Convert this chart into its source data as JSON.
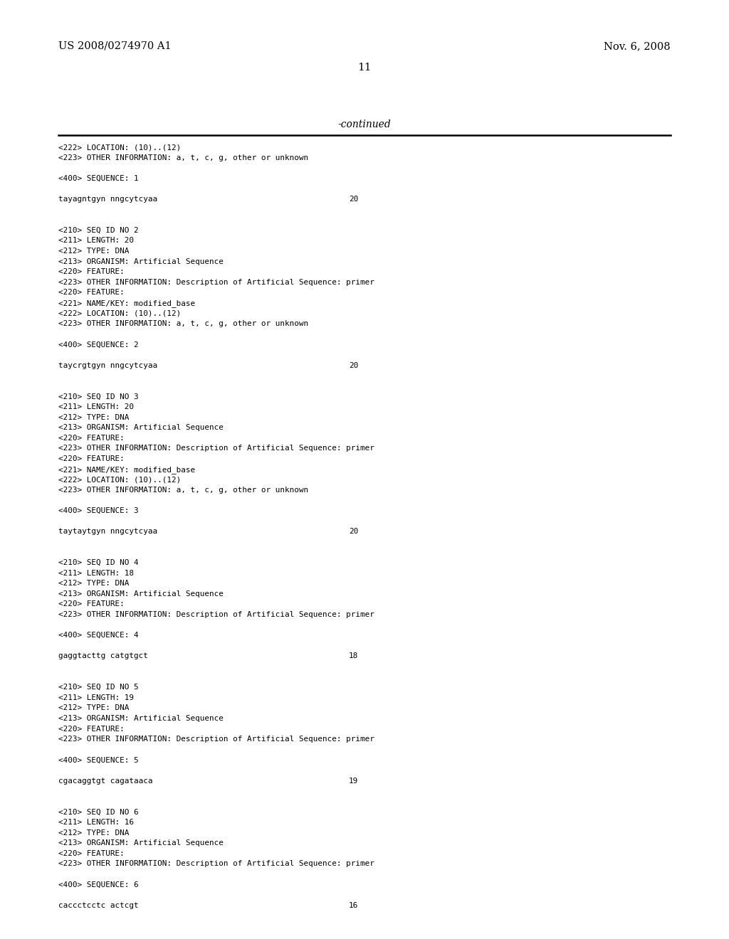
{
  "header_left": "US 2008/0274970 A1",
  "header_right": "Nov. 6, 2008",
  "page_number": "11",
  "continued_label": "-continued",
  "background_color": "#ffffff",
  "text_color": "#000000",
  "content_lines": [
    {
      "text": "<222> LOCATION: (10)..(12)",
      "type": "normal"
    },
    {
      "text": "<223> OTHER INFORMATION: a, t, c, g, other or unknown",
      "type": "normal"
    },
    {
      "text": "",
      "type": "blank"
    },
    {
      "text": "<400> SEQUENCE: 1",
      "type": "normal"
    },
    {
      "text": "",
      "type": "blank"
    },
    {
      "text": "tayagntgyn nngcytcyaa",
      "type": "seq",
      "num": "20"
    },
    {
      "text": "",
      "type": "blank"
    },
    {
      "text": "",
      "type": "blank"
    },
    {
      "text": "<210> SEQ ID NO 2",
      "type": "normal"
    },
    {
      "text": "<211> LENGTH: 20",
      "type": "normal"
    },
    {
      "text": "<212> TYPE: DNA",
      "type": "normal"
    },
    {
      "text": "<213> ORGANISM: Artificial Sequence",
      "type": "normal"
    },
    {
      "text": "<220> FEATURE:",
      "type": "normal"
    },
    {
      "text": "<223> OTHER INFORMATION: Description of Artificial Sequence: primer",
      "type": "normal"
    },
    {
      "text": "<220> FEATURE:",
      "type": "normal"
    },
    {
      "text": "<221> NAME/KEY: modified_base",
      "type": "normal"
    },
    {
      "text": "<222> LOCATION: (10)..(12)",
      "type": "normal"
    },
    {
      "text": "<223> OTHER INFORMATION: a, t, c, g, other or unknown",
      "type": "normal"
    },
    {
      "text": "",
      "type": "blank"
    },
    {
      "text": "<400> SEQUENCE: 2",
      "type": "normal"
    },
    {
      "text": "",
      "type": "blank"
    },
    {
      "text": "taycrgtgyn nngcytcyaa",
      "type": "seq",
      "num": "20"
    },
    {
      "text": "",
      "type": "blank"
    },
    {
      "text": "",
      "type": "blank"
    },
    {
      "text": "<210> SEQ ID NO 3",
      "type": "normal"
    },
    {
      "text": "<211> LENGTH: 20",
      "type": "normal"
    },
    {
      "text": "<212> TYPE: DNA",
      "type": "normal"
    },
    {
      "text": "<213> ORGANISM: Artificial Sequence",
      "type": "normal"
    },
    {
      "text": "<220> FEATURE:",
      "type": "normal"
    },
    {
      "text": "<223> OTHER INFORMATION: Description of Artificial Sequence: primer",
      "type": "normal"
    },
    {
      "text": "<220> FEATURE:",
      "type": "normal"
    },
    {
      "text": "<221> NAME/KEY: modified_base",
      "type": "normal"
    },
    {
      "text": "<222> LOCATION: (10)..(12)",
      "type": "normal"
    },
    {
      "text": "<223> OTHER INFORMATION: a, t, c, g, other or unknown",
      "type": "normal"
    },
    {
      "text": "",
      "type": "blank"
    },
    {
      "text": "<400> SEQUENCE: 3",
      "type": "normal"
    },
    {
      "text": "",
      "type": "blank"
    },
    {
      "text": "taytaytgyn nngcytcyaa",
      "type": "seq",
      "num": "20"
    },
    {
      "text": "",
      "type": "blank"
    },
    {
      "text": "",
      "type": "blank"
    },
    {
      "text": "<210> SEQ ID NO 4",
      "type": "normal"
    },
    {
      "text": "<211> LENGTH: 18",
      "type": "normal"
    },
    {
      "text": "<212> TYPE: DNA",
      "type": "normal"
    },
    {
      "text": "<213> ORGANISM: Artificial Sequence",
      "type": "normal"
    },
    {
      "text": "<220> FEATURE:",
      "type": "normal"
    },
    {
      "text": "<223> OTHER INFORMATION: Description of Artificial Sequence: primer",
      "type": "normal"
    },
    {
      "text": "",
      "type": "blank"
    },
    {
      "text": "<400> SEQUENCE: 4",
      "type": "normal"
    },
    {
      "text": "",
      "type": "blank"
    },
    {
      "text": "gaggtacttg catgtgct",
      "type": "seq",
      "num": "18"
    },
    {
      "text": "",
      "type": "blank"
    },
    {
      "text": "",
      "type": "blank"
    },
    {
      "text": "<210> SEQ ID NO 5",
      "type": "normal"
    },
    {
      "text": "<211> LENGTH: 19",
      "type": "normal"
    },
    {
      "text": "<212> TYPE: DNA",
      "type": "normal"
    },
    {
      "text": "<213> ORGANISM: Artificial Sequence",
      "type": "normal"
    },
    {
      "text": "<220> FEATURE:",
      "type": "normal"
    },
    {
      "text": "<223> OTHER INFORMATION: Description of Artificial Sequence: primer",
      "type": "normal"
    },
    {
      "text": "",
      "type": "blank"
    },
    {
      "text": "<400> SEQUENCE: 5",
      "type": "normal"
    },
    {
      "text": "",
      "type": "blank"
    },
    {
      "text": "cgacaggtgt cagataaca",
      "type": "seq",
      "num": "19"
    },
    {
      "text": "",
      "type": "blank"
    },
    {
      "text": "",
      "type": "blank"
    },
    {
      "text": "<210> SEQ ID NO 6",
      "type": "normal"
    },
    {
      "text": "<211> LENGTH: 16",
      "type": "normal"
    },
    {
      "text": "<212> TYPE: DNA",
      "type": "normal"
    },
    {
      "text": "<213> ORGANISM: Artificial Sequence",
      "type": "normal"
    },
    {
      "text": "<220> FEATURE:",
      "type": "normal"
    },
    {
      "text": "<223> OTHER INFORMATION: Description of Artificial Sequence: primer",
      "type": "normal"
    },
    {
      "text": "",
      "type": "blank"
    },
    {
      "text": "<400> SEQUENCE: 6",
      "type": "normal"
    },
    {
      "text": "",
      "type": "blank"
    },
    {
      "text": "caccctcctc actcgt",
      "type": "seq",
      "num": "16"
    }
  ],
  "fig_width": 10.24,
  "fig_height": 13.2,
  "dpi": 100
}
